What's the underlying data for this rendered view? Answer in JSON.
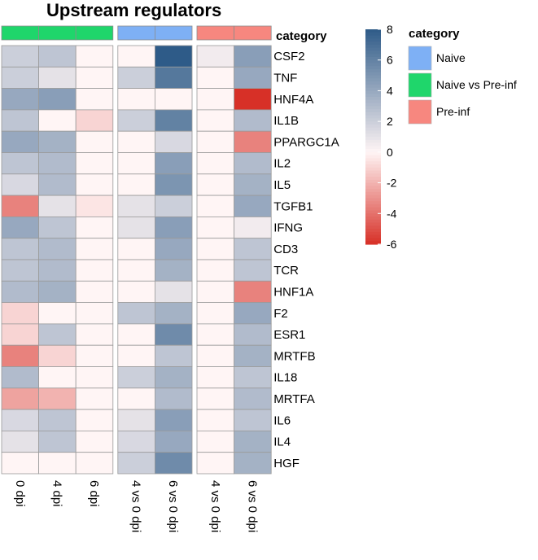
{
  "chart_data": {
    "type": "heatmap",
    "title": "Upstream regulators",
    "rows": [
      "CSF2",
      "TNF",
      "HNF4A",
      "IL1B",
      "PPARGC1A",
      "IL2",
      "IL5",
      "TGFB1",
      "IFNG",
      "CD3",
      "TCR",
      "HNF1A",
      "F2",
      "ESR1",
      "MRTFB",
      "IL18",
      "MRTFA",
      "IL6",
      "IL4",
      "HGF"
    ],
    "columns": [
      "0 dpi",
      "4 dpi",
      "6 dpi",
      "4 vs 0 dpi",
      "6 vs 0 dpi",
      "4 vs 0 dpi",
      "6 vs 0 dpi"
    ],
    "column_category": [
      "Naive vs Pre-inf",
      "Naive vs Pre-inf",
      "Naive vs Pre-inf",
      "Naive",
      "Naive",
      "Pre-inf",
      "Pre-inf"
    ],
    "column_groups": [
      3,
      2,
      2
    ],
    "values": [
      [
        2.0,
        2.5,
        0.0,
        0.0,
        8.0,
        0.5,
        4.5
      ],
      [
        2.0,
        1.0,
        0.0,
        2.0,
        6.5,
        0.0,
        4.0
      ],
      [
        4.0,
        4.5,
        0.0,
        0.0,
        0.0,
        0.0,
        -6.0
      ],
      [
        2.5,
        0.0,
        -1.0,
        2.0,
        6.0,
        0.0,
        3.0
      ],
      [
        4.0,
        3.5,
        0.0,
        0.0,
        1.5,
        0.0,
        -3.5
      ],
      [
        2.5,
        3.0,
        0.0,
        0.0,
        4.5,
        0.0,
        3.0
      ],
      [
        1.5,
        3.0,
        0.0,
        0.0,
        5.0,
        0.0,
        3.5
      ],
      [
        -3.5,
        1.0,
        -0.5,
        1.0,
        2.0,
        0.0,
        4.0
      ],
      [
        4.0,
        2.5,
        0.0,
        1.0,
        4.5,
        0.0,
        0.5
      ],
      [
        2.5,
        3.0,
        0.0,
        0.0,
        4.0,
        0.0,
        2.5
      ],
      [
        2.5,
        3.0,
        0.0,
        0.0,
        3.5,
        0.0,
        2.5
      ],
      [
        3.0,
        3.5,
        0.0,
        0.0,
        1.0,
        0.0,
        -3.5
      ],
      [
        -1.0,
        0.0,
        0.0,
        2.5,
        3.5,
        0.0,
        4.0
      ],
      [
        -1.0,
        2.5,
        0.0,
        0.0,
        5.5,
        0.0,
        3.0
      ],
      [
        -3.5,
        -1.0,
        0.0,
        0.0,
        2.5,
        0.0,
        3.5
      ],
      [
        3.0,
        0.0,
        0.0,
        2.0,
        3.5,
        0.0,
        2.5
      ],
      [
        -2.5,
        -2.0,
        0.0,
        0.0,
        3.0,
        0.0,
        3.0
      ],
      [
        1.5,
        2.5,
        0.0,
        1.0,
        4.5,
        0.0,
        2.5
      ],
      [
        1.0,
        2.5,
        0.0,
        1.5,
        4.0,
        0.0,
        3.5
      ],
      [
        0.0,
        0.0,
        0.0,
        2.0,
        5.5,
        0.0,
        3.5
      ]
    ],
    "color_scale": {
      "min": -6,
      "max": 8,
      "low_color": "#D73027",
      "mid_color": "#FFF5F5",
      "high_color": "#2E5B88"
    },
    "colorbar_ticks": [
      8,
      6,
      4,
      2,
      0,
      -2,
      -4,
      -6
    ],
    "annotation_label": "category",
    "legend": {
      "title": "category",
      "items": [
        {
          "label": "Naive",
          "color": "#7EB0F5"
        },
        {
          "label": "Naive vs Pre-inf",
          "color": "#1FD66B"
        },
        {
          "label": "Pre-inf",
          "color": "#F7877F"
        }
      ]
    }
  }
}
